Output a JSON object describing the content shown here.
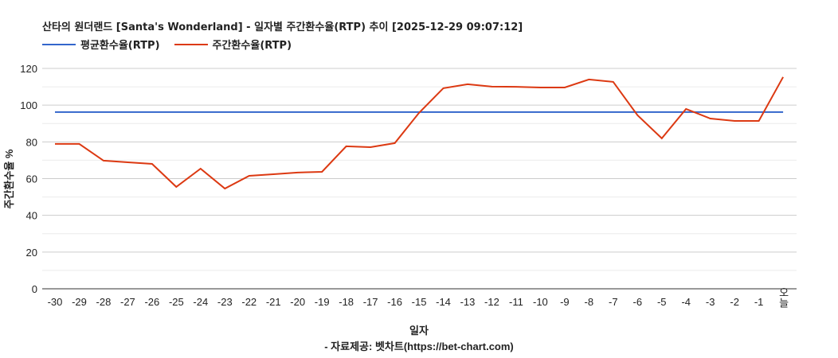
{
  "chart_data": {
    "type": "line",
    "title": "산타의 원더랜드 [Santa's Wonderland] - 일자별 주간환수율(RTP) 추이 [2025-12-29 09:07:12]",
    "xlabel": "일자",
    "ylabel": "주간환수율 %",
    "source": "- 자료제공: 벳차트(https://bet-chart.com)",
    "ylim": [
      0,
      120
    ],
    "yticks": [
      "0",
      "20",
      "40",
      "60",
      "80",
      "100",
      "120"
    ],
    "categories": [
      "-30",
      "-29",
      "-28",
      "-27",
      "-26",
      "-25",
      "-24",
      "-23",
      "-22",
      "-21",
      "-20",
      "-19",
      "-18",
      "-17",
      "-16",
      "-15",
      "-14",
      "-13",
      "-12",
      "-11",
      "-10",
      "-9",
      "-8",
      "-7",
      "-6",
      "-5",
      "-4",
      "-3",
      "-2",
      "-1",
      "오늘"
    ],
    "legend_position": "top-left",
    "series": [
      {
        "name": "평균환수율(RTP)",
        "color": "#3366cc",
        "values": [
          96.2,
          96.2,
          96.2,
          96.2,
          96.2,
          96.2,
          96.2,
          96.2,
          96.2,
          96.2,
          96.2,
          96.2,
          96.2,
          96.2,
          96.2,
          96.2,
          96.2,
          96.2,
          96.2,
          96.2,
          96.2,
          96.2,
          96.2,
          96.2,
          96.2,
          96.2,
          96.2,
          96.2,
          96.2,
          96.2,
          96.2
        ]
      },
      {
        "name": "주간환수율(RTP)",
        "color": "#dc3912",
        "values": [
          78.9,
          78.9,
          69.8,
          68.9,
          68.0,
          55.5,
          65.4,
          54.6,
          61.5,
          62.4,
          63.3,
          63.7,
          77.6,
          77.1,
          79.3,
          95.8,
          109.2,
          111.4,
          110.1,
          110.0,
          109.6,
          109.6,
          114.0,
          112.7,
          94.5,
          81.9,
          97.9,
          92.7,
          91.4,
          91.4,
          115.3
        ]
      }
    ]
  }
}
